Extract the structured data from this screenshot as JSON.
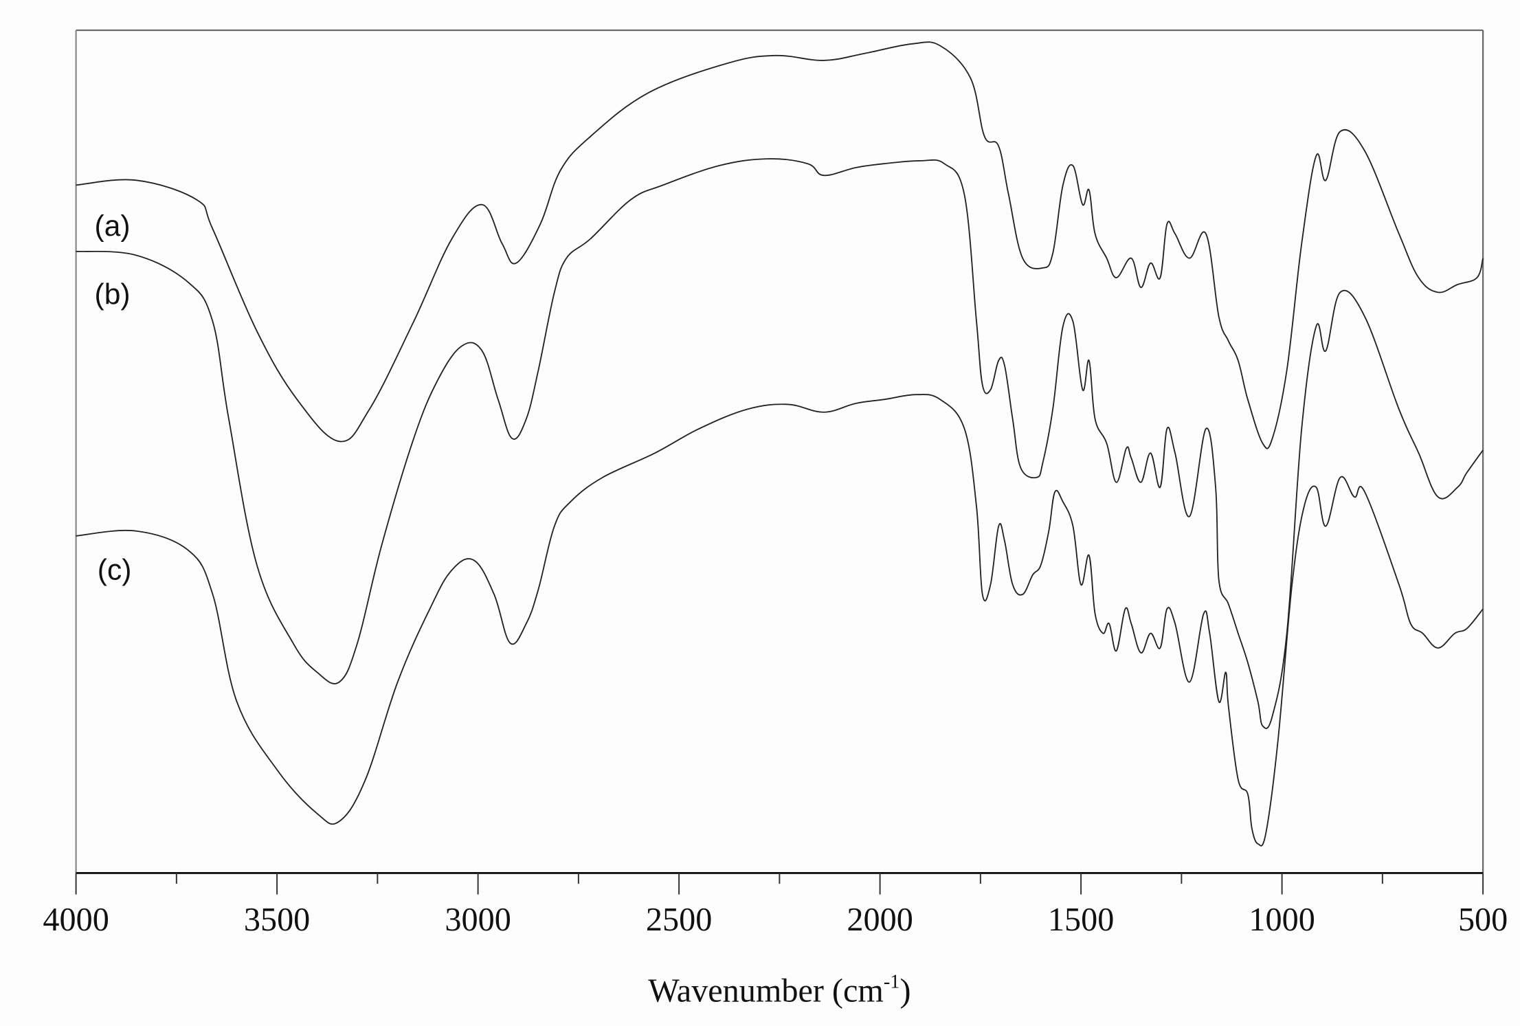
{
  "chart_data": {
    "type": "line",
    "title": "",
    "xlabel": "Wavenumber (cm-1)",
    "xlabel_main": "Wavenumber (cm",
    "xlabel_sup": "-1",
    "xlabel_close": ")",
    "ylabel": "",
    "xlim": [
      4000,
      500
    ],
    "x_reversed": true,
    "x_ticks": [
      4000,
      3500,
      3000,
      2500,
      2000,
      1500,
      1000,
      500
    ],
    "x_tick_labels": [
      "4000",
      "3500",
      "3000",
      "2500",
      "2000",
      "1500",
      "1000",
      "500"
    ],
    "x_minor_ticks": [
      3750,
      3250,
      2750,
      2250,
      1750,
      1250,
      750
    ],
    "y_ticks": [],
    "grid": false,
    "legend": "inline labels at left",
    "line_color": "#222222",
    "y_units": "display offset (px, stacked spectra, arbitrary transmittance)",
    "series": [
      {
        "name": "(a)",
        "label_pos": [
          97,
          232
        ],
        "points": [
          [
            4000,
            190
          ],
          [
            3850,
            185
          ],
          [
            3700,
            205
          ],
          [
            3660,
            235
          ],
          [
            3550,
            340
          ],
          [
            3450,
            410
          ],
          [
            3345,
            453
          ],
          [
            3270,
            420
          ],
          [
            3160,
            330
          ],
          [
            3065,
            245
          ],
          [
            2990,
            210
          ],
          [
            2940,
            250
          ],
          [
            2905,
            270
          ],
          [
            2845,
            230
          ],
          [
            2795,
            175
          ],
          [
            2720,
            140
          ],
          [
            2575,
            95
          ],
          [
            2380,
            65
          ],
          [
            2260,
            57
          ],
          [
            2140,
            62
          ],
          [
            2040,
            55
          ],
          [
            1920,
            45
          ],
          [
            1850,
            47
          ],
          [
            1775,
            80
          ],
          [
            1740,
            140
          ],
          [
            1705,
            150
          ],
          [
            1680,
            200
          ],
          [
            1645,
            265
          ],
          [
            1595,
            275
          ],
          [
            1570,
            260
          ],
          [
            1545,
            190
          ],
          [
            1520,
            170
          ],
          [
            1496,
            210
          ],
          [
            1480,
            195
          ],
          [
            1465,
            240
          ],
          [
            1436,
            265
          ],
          [
            1412,
            285
          ],
          [
            1375,
            265
          ],
          [
            1351,
            295
          ],
          [
            1327,
            270
          ],
          [
            1303,
            285
          ],
          [
            1286,
            230
          ],
          [
            1266,
            240
          ],
          [
            1230,
            265
          ],
          [
            1189,
            240
          ],
          [
            1157,
            325
          ],
          [
            1133,
            350
          ],
          [
            1109,
            370
          ],
          [
            1085,
            410
          ],
          [
            1048,
            455
          ],
          [
            1024,
            450
          ],
          [
            988,
            380
          ],
          [
            951,
            250
          ],
          [
            915,
            160
          ],
          [
            891,
            185
          ],
          [
            855,
            135
          ],
          [
            794,
            155
          ],
          [
            709,
            240
          ],
          [
            660,
            285
          ],
          [
            612,
            300
          ],
          [
            563,
            292
          ],
          [
            515,
            285
          ],
          [
            500,
            265
          ]
        ]
      },
      {
        "name": "(b)",
        "label_pos": [
          97,
          302
        ],
        "points": [
          [
            4000,
            258
          ],
          [
            3850,
            262
          ],
          [
            3720,
            290
          ],
          [
            3660,
            330
          ],
          [
            3620,
            430
          ],
          [
            3550,
            580
          ],
          [
            3460,
            660
          ],
          [
            3400,
            690
          ],
          [
            3345,
            700
          ],
          [
            3300,
            660
          ],
          [
            3240,
            560
          ],
          [
            3160,
            450
          ],
          [
            3100,
            390
          ],
          [
            3040,
            355
          ],
          [
            2990,
            360
          ],
          [
            2950,
            410
          ],
          [
            2915,
            450
          ],
          [
            2880,
            430
          ],
          [
            2850,
            380
          ],
          [
            2810,
            300
          ],
          [
            2780,
            265
          ],
          [
            2720,
            245
          ],
          [
            2620,
            205
          ],
          [
            2540,
            190
          ],
          [
            2400,
            170
          ],
          [
            2280,
            163
          ],
          [
            2180,
            168
          ],
          [
            2140,
            180
          ],
          [
            2060,
            172
          ],
          [
            1990,
            168
          ],
          [
            1900,
            165
          ],
          [
            1840,
            168
          ],
          [
            1790,
            200
          ],
          [
            1760,
            330
          ],
          [
            1745,
            395
          ],
          [
            1725,
            400
          ],
          [
            1705,
            370
          ],
          [
            1690,
            375
          ],
          [
            1670,
            430
          ],
          [
            1650,
            480
          ],
          [
            1610,
            490
          ],
          [
            1595,
            475
          ],
          [
            1570,
            420
          ],
          [
            1545,
            335
          ],
          [
            1520,
            330
          ],
          [
            1496,
            400
          ],
          [
            1480,
            370
          ],
          [
            1465,
            430
          ],
          [
            1436,
            455
          ],
          [
            1412,
            495
          ],
          [
            1387,
            460
          ],
          [
            1375,
            470
          ],
          [
            1351,
            495
          ],
          [
            1327,
            465
          ],
          [
            1303,
            500
          ],
          [
            1286,
            440
          ],
          [
            1266,
            465
          ],
          [
            1230,
            530
          ],
          [
            1189,
            440
          ],
          [
            1165,
            500
          ],
          [
            1157,
            595
          ],
          [
            1133,
            620
          ],
          [
            1109,
            650
          ],
          [
            1085,
            680
          ],
          [
            1060,
            720
          ],
          [
            1048,
            745
          ],
          [
            1024,
            735
          ],
          [
            988,
            650
          ],
          [
            951,
            440
          ],
          [
            915,
            335
          ],
          [
            891,
            360
          ],
          [
            855,
            300
          ],
          [
            794,
            325
          ],
          [
            709,
            420
          ],
          [
            660,
            465
          ],
          [
            612,
            510
          ],
          [
            563,
            500
          ],
          [
            540,
            485
          ],
          [
            500,
            462
          ]
        ]
      },
      {
        "name": "(c)",
        "label_pos": [
          100,
          585
        ],
        "points": [
          [
            4000,
            550
          ],
          [
            3850,
            545
          ],
          [
            3720,
            565
          ],
          [
            3660,
            610
          ],
          [
            3600,
            720
          ],
          [
            3500,
            790
          ],
          [
            3400,
            835
          ],
          [
            3345,
            843
          ],
          [
            3280,
            800
          ],
          [
            3200,
            700
          ],
          [
            3120,
            625
          ],
          [
            3065,
            585
          ],
          [
            3010,
            575
          ],
          [
            2960,
            610
          ],
          [
            2920,
            660
          ],
          [
            2880,
            640
          ],
          [
            2850,
            605
          ],
          [
            2810,
            540
          ],
          [
            2770,
            515
          ],
          [
            2690,
            490
          ],
          [
            2560,
            465
          ],
          [
            2450,
            440
          ],
          [
            2330,
            420
          ],
          [
            2230,
            415
          ],
          [
            2140,
            423
          ],
          [
            2060,
            414
          ],
          [
            1990,
            410
          ],
          [
            1910,
            405
          ],
          [
            1850,
            410
          ],
          [
            1790,
            440
          ],
          [
            1760,
            520
          ],
          [
            1745,
            610
          ],
          [
            1725,
            600
          ],
          [
            1705,
            540
          ],
          [
            1690,
            555
          ],
          [
            1670,
            600
          ],
          [
            1645,
            610
          ],
          [
            1620,
            590
          ],
          [
            1600,
            580
          ],
          [
            1580,
            545
          ],
          [
            1565,
            505
          ],
          [
            1545,
            515
          ],
          [
            1520,
            540
          ],
          [
            1500,
            600
          ],
          [
            1480,
            570
          ],
          [
            1465,
            630
          ],
          [
            1445,
            650
          ],
          [
            1430,
            640
          ],
          [
            1412,
            668
          ],
          [
            1390,
            625
          ],
          [
            1375,
            640
          ],
          [
            1351,
            670
          ],
          [
            1327,
            650
          ],
          [
            1303,
            665
          ],
          [
            1286,
            625
          ],
          [
            1266,
            640
          ],
          [
            1230,
            700
          ],
          [
            1195,
            630
          ],
          [
            1180,
            650
          ],
          [
            1157,
            720
          ],
          [
            1140,
            690
          ],
          [
            1133,
            725
          ],
          [
            1109,
            800
          ],
          [
            1085,
            815
          ],
          [
            1075,
            850
          ],
          [
            1060,
            866
          ],
          [
            1040,
            855
          ],
          [
            1010,
            760
          ],
          [
            975,
            600
          ],
          [
            945,
            520
          ],
          [
            915,
            500
          ],
          [
            891,
            540
          ],
          [
            855,
            490
          ],
          [
            820,
            510
          ],
          [
            794,
            505
          ],
          [
            709,
            600
          ],
          [
            680,
            640
          ],
          [
            650,
            650
          ],
          [
            612,
            665
          ],
          [
            570,
            650
          ],
          [
            540,
            645
          ],
          [
            500,
            625
          ]
        ]
      }
    ]
  },
  "labels": {
    "a": "(a)",
    "b": "(b)",
    "c": "(c)"
  }
}
